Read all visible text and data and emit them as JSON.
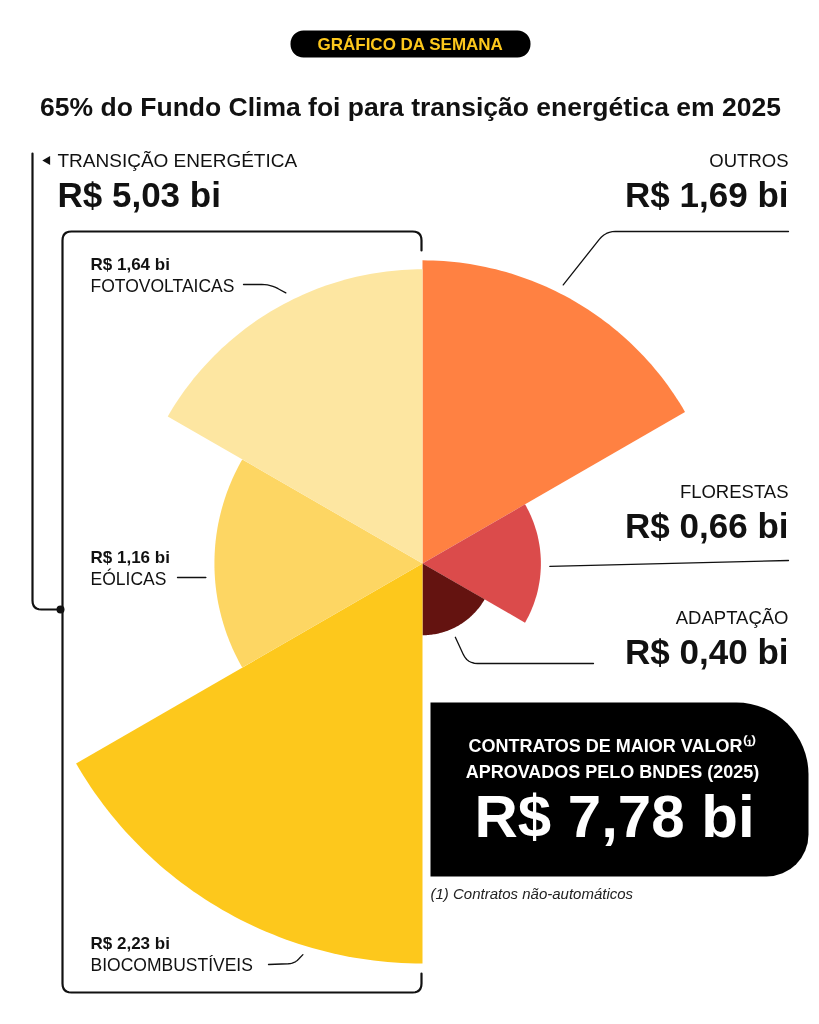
{
  "chart_data": {
    "type": "other",
    "title": "65% do Fundo Clima foi para transição energética em 2025",
    "categories": [
      "OUTROS",
      "FLORESTAS",
      "ADAPTAÇÃO",
      "BIOCOMBUSTÍVEIS",
      "EÓLICAS",
      "FOTOVOLTAICAS"
    ],
    "values": [
      1.69,
      0.66,
      0.4,
      2.23,
      1.16,
      1.64
    ],
    "colors": [
      "#ff8142",
      "#db4b4b",
      "#641310",
      "#fdc81c",
      "#fdd663",
      "#fde6a1"
    ],
    "value_labels": [
      "R$ 1,69 bi",
      "R$ 0,66 bi",
      "R$ 0,40 bi",
      "R$ 2,23 bi",
      "R$ 1,16 bi",
      "R$ 1,64 bi"
    ],
    "annotations": [
      "GRÁFICO DA SEMANA",
      "TRANSIÇÃO ENERGÉTICA",
      "R$ 5,03 bi",
      "CONTRATOS DE MAIOR VALOR⁽¹⁾",
      "APROVADOS PELO BNDES (2025)",
      "R$ 7,78 bi",
      "(1) Contratos não-automáticos"
    ]
  }
}
